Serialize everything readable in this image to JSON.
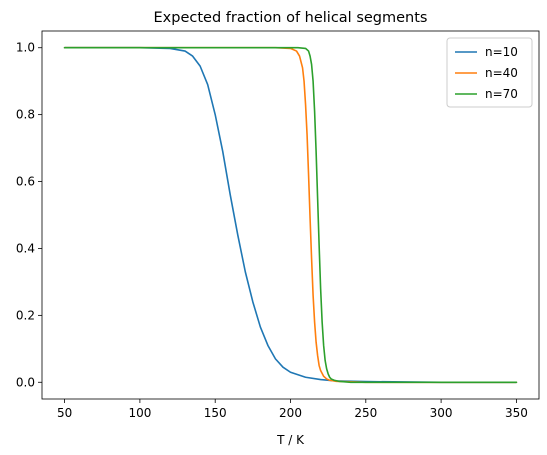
{
  "chart_data": {
    "type": "line",
    "title": "Expected fraction of helical segments",
    "xlabel": "T / K",
    "ylabel": "",
    "xlim": [
      35,
      365
    ],
    "ylim": [
      -0.05,
      1.05
    ],
    "x_ticks": [
      50,
      100,
      150,
      200,
      250,
      300,
      350
    ],
    "x_tick_labels": [
      "50",
      "100",
      "150",
      "200",
      "250",
      "300",
      "350"
    ],
    "y_ticks": [
      0.0,
      0.2,
      0.4,
      0.6,
      0.8,
      1.0
    ],
    "y_tick_labels": [
      "0.0",
      "0.2",
      "0.4",
      "0.6",
      "0.8",
      "1.0"
    ],
    "grid": false,
    "legend_position": "top-right",
    "series": [
      {
        "name": "n=10",
        "color": "#1f77b4",
        "x": [
          50,
          100,
          120,
          130,
          135,
          140,
          145,
          150,
          155,
          160,
          165,
          170,
          175,
          180,
          185,
          190,
          195,
          200,
          210,
          220,
          230,
          250,
          300,
          350
        ],
        "y": [
          1.0,
          1.0,
          0.998,
          0.99,
          0.975,
          0.945,
          0.89,
          0.8,
          0.69,
          0.56,
          0.44,
          0.33,
          0.24,
          0.165,
          0.11,
          0.07,
          0.045,
          0.03,
          0.015,
          0.008,
          0.004,
          0.002,
          0.0,
          0.0
        ]
      },
      {
        "name": "n=40",
        "color": "#ff7f0e",
        "x": [
          50,
          190,
          200,
          204,
          206,
          208,
          209,
          210,
          211,
          212,
          213,
          214,
          215,
          216,
          217,
          218,
          219,
          220,
          222,
          224,
          226,
          230,
          250,
          300,
          350
        ],
        "y": [
          1.0,
          1.0,
          0.998,
          0.99,
          0.975,
          0.94,
          0.9,
          0.83,
          0.74,
          0.62,
          0.49,
          0.37,
          0.26,
          0.18,
          0.12,
          0.08,
          0.05,
          0.035,
          0.018,
          0.01,
          0.006,
          0.003,
          0.0,
          0.0,
          0.0
        ]
      },
      {
        "name": "n=70",
        "color": "#2ca02c",
        "x": [
          50,
          205,
          210,
          212,
          213,
          214,
          215,
          216,
          217,
          218,
          219,
          220,
          221,
          222,
          223,
          224,
          225,
          226,
          227,
          229,
          232,
          240,
          300,
          350
        ],
        "y": [
          1.0,
          1.0,
          0.998,
          0.99,
          0.975,
          0.95,
          0.9,
          0.81,
          0.69,
          0.55,
          0.41,
          0.28,
          0.18,
          0.11,
          0.065,
          0.04,
          0.025,
          0.015,
          0.01,
          0.006,
          0.003,
          0.0,
          0.0,
          0.0
        ]
      }
    ]
  }
}
